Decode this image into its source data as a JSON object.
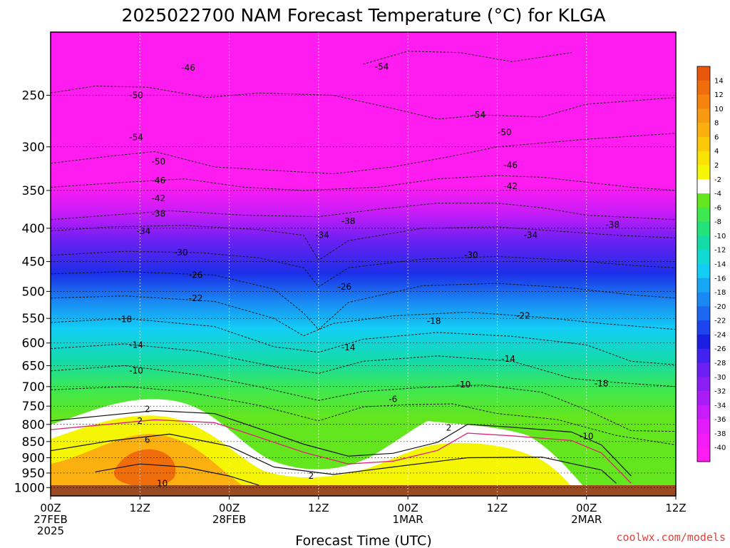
{
  "chart_data": {
    "type": "heatmap",
    "title": "2025022700 NAM Forecast Temperature (°C) for KLGA",
    "xlabel": "Forecast Time (UTC)",
    "ylabel": "",
    "credit": "coolwx.com/models",
    "x_range_hours": [
      0,
      84
    ],
    "x_ticks": [
      {
        "hour": 0,
        "lines": [
          "00Z",
          "27FEB",
          "2025"
        ]
      },
      {
        "hour": 12,
        "lines": [
          "12Z"
        ]
      },
      {
        "hour": 24,
        "lines": [
          "00Z",
          "28FEB"
        ]
      },
      {
        "hour": 36,
        "lines": [
          "12Z"
        ]
      },
      {
        "hour": 48,
        "lines": [
          "00Z",
          "1MAR"
        ]
      },
      {
        "hour": 60,
        "lines": [
          "12Z"
        ]
      },
      {
        "hour": 72,
        "lines": [
          "00Z",
          "2MAR"
        ]
      },
      {
        "hour": 84,
        "lines": [
          "12Z"
        ]
      }
    ],
    "pressure_levels_hPa": [
      250,
      300,
      350,
      400,
      450,
      500,
      550,
      600,
      650,
      700,
      750,
      800,
      850,
      900,
      950,
      1000
    ],
    "y_range_hPa": [
      200,
      1030
    ],
    "y_scale": "log",
    "colorbar": {
      "ticks": [
        14,
        12,
        10,
        8,
        6,
        4,
        2,
        -2,
        -4,
        -6,
        -8,
        -10,
        -12,
        -14,
        -16,
        -18,
        -20,
        -22,
        -24,
        -26,
        -28,
        -30,
        -32,
        -34,
        -36,
        -38,
        -40
      ],
      "colors": [
        "#e8570b",
        "#f06d0c",
        "#f5830e",
        "#f89a10",
        "#fbb010",
        "#fcc90a",
        "#fbe205",
        "#f5f506",
        "#ffffff",
        "#64e61e",
        "#3ee850",
        "#23e27c",
        "#14dba8",
        "#10dad2",
        "#12cef5",
        "#16a6f4",
        "#1a88f3",
        "#1c66f2",
        "#1e44f0",
        "#1a1ee0",
        "#4222f0",
        "#6a20f2",
        "#8a1ef4",
        "#aa1cf6",
        "#c81cf8",
        "#e21cfa",
        "#f41cf6",
        "#ff1cf0"
      ]
    },
    "isotherms": [
      {
        "temp": -54,
        "points": [
          [
            42,
            224
          ],
          [
            48,
            214
          ],
          [
            55,
            215
          ],
          [
            62,
            222
          ],
          [
            70,
            215
          ]
        ]
      },
      {
        "temp": -50,
        "points": [
          [
            0,
            248
          ],
          [
            6,
            242
          ],
          [
            13,
            243
          ],
          [
            21,
            252
          ],
          [
            28,
            248
          ],
          [
            38,
            250
          ],
          [
            46,
            262
          ],
          [
            52,
            272
          ],
          [
            58,
            268
          ],
          [
            66,
            270
          ],
          [
            72,
            258
          ],
          [
            84,
            252
          ]
        ]
      },
      {
        "temp": -46,
        "points": [
          [
            0,
            318
          ],
          [
            8,
            310
          ],
          [
            14,
            305
          ],
          [
            22,
            322
          ],
          [
            30,
            326
          ],
          [
            38,
            330
          ],
          [
            46,
            322
          ],
          [
            54,
            310
          ],
          [
            60,
            300
          ],
          [
            66,
            296
          ],
          [
            72,
            292
          ],
          [
            84,
            286
          ]
        ]
      },
      {
        "temp": -42,
        "points": [
          [
            0,
            346
          ],
          [
            10,
            340
          ],
          [
            18,
            336
          ],
          [
            26,
            346
          ],
          [
            34,
            350
          ],
          [
            44,
            346
          ],
          [
            52,
            336
          ],
          [
            60,
            332
          ],
          [
            66,
            334
          ],
          [
            72,
            340
          ],
          [
            78,
            346
          ],
          [
            84,
            350
          ]
        ]
      },
      {
        "temp": -38,
        "points": [
          [
            0,
            388
          ],
          [
            8,
            382
          ],
          [
            16,
            376
          ],
          [
            26,
            382
          ],
          [
            36,
            384
          ],
          [
            44,
            374
          ],
          [
            52,
            366
          ],
          [
            60,
            366
          ],
          [
            66,
            372
          ],
          [
            72,
            382
          ],
          [
            80,
            386
          ],
          [
            84,
            388
          ]
        ]
      },
      {
        "temp": -34,
        "points": [
          [
            0,
            404
          ],
          [
            8,
            398
          ],
          [
            18,
            396
          ],
          [
            28,
            402
          ],
          [
            34,
            410
          ],
          [
            36,
            448
          ],
          [
            40,
            418
          ],
          [
            50,
            400
          ],
          [
            60,
            398
          ],
          [
            68,
            404
          ],
          [
            76,
            410
          ],
          [
            84,
            414
          ]
        ]
      },
      {
        "temp": -30,
        "points": [
          [
            0,
            440
          ],
          [
            10,
            434
          ],
          [
            20,
            436
          ],
          [
            28,
            444
          ],
          [
            34,
            460
          ],
          [
            36,
            492
          ],
          [
            40,
            460
          ],
          [
            50,
            446
          ],
          [
            60,
            442
          ],
          [
            70,
            448
          ],
          [
            78,
            456
          ],
          [
            84,
            460
          ]
        ]
      },
      {
        "temp": -26,
        "points": [
          [
            0,
            470
          ],
          [
            10,
            466
          ],
          [
            22,
            472
          ],
          [
            30,
            496
          ],
          [
            34,
            540
          ],
          [
            36,
            572
          ],
          [
            40,
            520
          ],
          [
            50,
            490
          ],
          [
            60,
            486
          ],
          [
            70,
            494
          ],
          [
            78,
            506
          ],
          [
            84,
            512
          ]
        ]
      },
      {
        "temp": -22,
        "points": [
          [
            0,
            512
          ],
          [
            10,
            508
          ],
          [
            22,
            518
          ],
          [
            30,
            550
          ],
          [
            34,
            585
          ],
          [
            38,
            560
          ],
          [
            46,
            545
          ],
          [
            56,
            538
          ],
          [
            66,
            548
          ],
          [
            74,
            560
          ],
          [
            84,
            572
          ]
        ]
      },
      {
        "temp": -18,
        "points": [
          [
            0,
            558
          ],
          [
            10,
            550
          ],
          [
            22,
            566
          ],
          [
            30,
            608
          ],
          [
            36,
            620
          ],
          [
            42,
            592
          ],
          [
            52,
            578
          ],
          [
            62,
            586
          ],
          [
            72,
            604
          ],
          [
            78,
            640
          ],
          [
            84,
            648
          ]
        ]
      },
      {
        "temp": -14,
        "points": [
          [
            0,
            612
          ],
          [
            10,
            602
          ],
          [
            20,
            618
          ],
          [
            30,
            652
          ],
          [
            36,
            668
          ],
          [
            42,
            640
          ],
          [
            52,
            628
          ],
          [
            62,
            640
          ],
          [
            70,
            680
          ],
          [
            76,
            690
          ],
          [
            84,
            700
          ]
        ]
      },
      {
        "temp": -10,
        "points": [
          [
            0,
            662
          ],
          [
            10,
            650
          ],
          [
            20,
            672
          ],
          [
            28,
            700
          ],
          [
            36,
            735
          ],
          [
            42,
            712
          ],
          [
            50,
            702
          ],
          [
            58,
            696
          ],
          [
            66,
            714
          ],
          [
            72,
            760
          ],
          [
            78,
            818
          ],
          [
            84,
            820
          ]
        ]
      },
      {
        "temp": -6,
        "points": [
          [
            0,
            708
          ],
          [
            10,
            700
          ],
          [
            18,
            712
          ],
          [
            28,
            748
          ],
          [
            36,
            790
          ],
          [
            42,
            752
          ],
          [
            48,
            746
          ],
          [
            54,
            744
          ],
          [
            60,
            770
          ],
          [
            68,
            786
          ],
          [
            76,
            832
          ],
          [
            84,
            860
          ]
        ]
      },
      {
        "temp": 2,
        "points": [
          [
            0,
            790
          ],
          [
            6,
            778
          ],
          [
            14,
            762
          ],
          [
            22,
            770
          ],
          [
            28,
            812
          ],
          [
            34,
            858
          ],
          [
            40,
            895
          ],
          [
            46,
            886
          ],
          [
            52,
            852
          ],
          [
            56,
            800
          ],
          [
            62,
            808
          ],
          [
            70,
            822
          ],
          [
            74,
            860
          ],
          [
            78,
            960
          ]
        ]
      },
      {
        "temp": 6,
        "points": [
          [
            0,
            878
          ],
          [
            8,
            848
          ],
          [
            16,
            828
          ],
          [
            24,
            864
          ],
          [
            30,
            930
          ],
          [
            38,
            955
          ],
          [
            46,
            930
          ],
          [
            56,
            900
          ],
          [
            66,
            898
          ],
          [
            74,
            940
          ],
          [
            76,
            985
          ]
        ]
      },
      {
        "temp": 10,
        "points": [
          [
            6,
            946
          ],
          [
            12,
            920
          ],
          [
            18,
            930
          ],
          [
            24,
            960
          ],
          [
            28,
            992
          ]
        ]
      }
    ],
    "labels": [
      {
        "text": "-54",
        "hour": 44.5,
        "p": 226
      },
      {
        "text": "-54",
        "hour": 11.5,
        "p": 290
      },
      {
        "text": "-54",
        "hour": 57.5,
        "p": 268
      },
      {
        "text": "-50",
        "hour": 11.5,
        "p": 250
      },
      {
        "text": "-50",
        "hour": 14.5,
        "p": 316
      },
      {
        "text": "-50",
        "hour": 61,
        "p": 285
      },
      {
        "text": "-46",
        "hour": 18.5,
        "p": 227
      },
      {
        "text": "-46",
        "hour": 14.5,
        "p": 338
      },
      {
        "text": "-46",
        "hour": 61.8,
        "p": 320
      },
      {
        "text": "-42",
        "hour": 14.5,
        "p": 360
      },
      {
        "text": "-42",
        "hour": 61.8,
        "p": 345
      },
      {
        "text": "-38",
        "hour": 14.5,
        "p": 380
      },
      {
        "text": "-38",
        "hour": 40,
        "p": 390
      },
      {
        "text": "-38",
        "hour": 75.5,
        "p": 395
      },
      {
        "text": "-34",
        "hour": 12.5,
        "p": 404
      },
      {
        "text": "-34",
        "hour": 36.5,
        "p": 410
      },
      {
        "text": "-34",
        "hour": 64.5,
        "p": 410
      },
      {
        "text": "-30",
        "hour": 17.5,
        "p": 436
      },
      {
        "text": "-30",
        "hour": 56.5,
        "p": 440
      },
      {
        "text": "-26",
        "hour": 19.5,
        "p": 472
      },
      {
        "text": "-26",
        "hour": 39.5,
        "p": 492
      },
      {
        "text": "-22",
        "hour": 19.5,
        "p": 512
      },
      {
        "text": "-22",
        "hour": 63.5,
        "p": 545
      },
      {
        "text": "-18",
        "hour": 10,
        "p": 552
      },
      {
        "text": "-18",
        "hour": 51.5,
        "p": 555
      },
      {
        "text": "-18",
        "hour": 74,
        "p": 692
      },
      {
        "text": "-14",
        "hour": 11.5,
        "p": 604
      },
      {
        "text": "-14",
        "hour": 40,
        "p": 610
      },
      {
        "text": "-14",
        "hour": 61.5,
        "p": 635
      },
      {
        "text": "-10",
        "hour": 11.5,
        "p": 662
      },
      {
        "text": "-10",
        "hour": 55.5,
        "p": 695
      },
      {
        "text": "-10",
        "hour": 72,
        "p": 834
      },
      {
        "text": "-6",
        "hour": 46,
        "p": 732
      },
      {
        "text": "2",
        "hour": 13,
        "p": 758
      },
      {
        "text": "2",
        "hour": 12,
        "p": 790
      },
      {
        "text": "2",
        "hour": 53.5,
        "p": 810
      },
      {
        "text": "2",
        "hour": 35,
        "p": 960
      },
      {
        "text": "6",
        "hour": 13,
        "p": 845
      },
      {
        "text": "10",
        "hour": 15,
        "p": 985
      }
    ]
  }
}
